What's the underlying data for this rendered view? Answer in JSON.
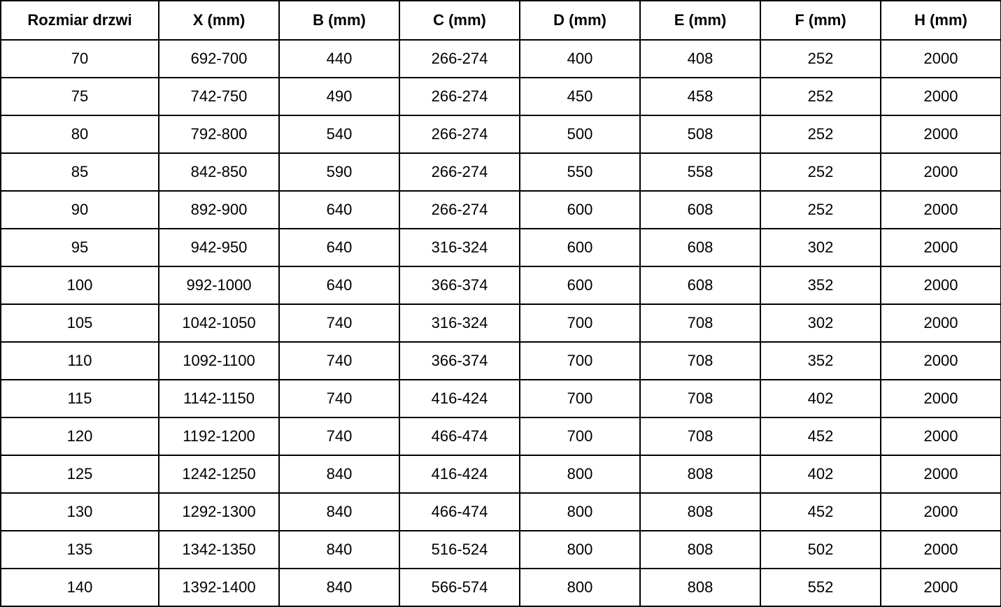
{
  "chart_data": {
    "type": "table",
    "title": "",
    "columns": [
      "Rozmiar drzwi",
      "X (mm)",
      "B (mm)",
      "C (mm)",
      "D (mm)",
      "E (mm)",
      "F (mm)",
      "H (mm)"
    ],
    "rows": [
      [
        "70",
        "692-700",
        "440",
        "266-274",
        "400",
        "408",
        "252",
        "2000"
      ],
      [
        "75",
        "742-750",
        "490",
        "266-274",
        "450",
        "458",
        "252",
        "2000"
      ],
      [
        "80",
        "792-800",
        "540",
        "266-274",
        "500",
        "508",
        "252",
        "2000"
      ],
      [
        "85",
        "842-850",
        "590",
        "266-274",
        "550",
        "558",
        "252",
        "2000"
      ],
      [
        "90",
        "892-900",
        "640",
        "266-274",
        "600",
        "608",
        "252",
        "2000"
      ],
      [
        "95",
        "942-950",
        "640",
        "316-324",
        "600",
        "608",
        "302",
        "2000"
      ],
      [
        "100",
        "992-1000",
        "640",
        "366-374",
        "600",
        "608",
        "352",
        "2000"
      ],
      [
        "105",
        "1042-1050",
        "740",
        "316-324",
        "700",
        "708",
        "302",
        "2000"
      ],
      [
        "110",
        "1092-1100",
        "740",
        "366-374",
        "700",
        "708",
        "352",
        "2000"
      ],
      [
        "115",
        "1142-1150",
        "740",
        "416-424",
        "700",
        "708",
        "402",
        "2000"
      ],
      [
        "120",
        "1192-1200",
        "740",
        "466-474",
        "700",
        "708",
        "452",
        "2000"
      ],
      [
        "125",
        "1242-1250",
        "840",
        "416-424",
        "800",
        "808",
        "402",
        "2000"
      ],
      [
        "130",
        "1292-1300",
        "840",
        "466-474",
        "800",
        "808",
        "452",
        "2000"
      ],
      [
        "135",
        "1342-1350",
        "840",
        "516-524",
        "800",
        "808",
        "502",
        "2000"
      ],
      [
        "140",
        "1392-1400",
        "840",
        "566-574",
        "800",
        "808",
        "552",
        "2000"
      ]
    ]
  },
  "colors": {
    "border": "#000000",
    "background": "#ffffff",
    "text": "#000000"
  }
}
